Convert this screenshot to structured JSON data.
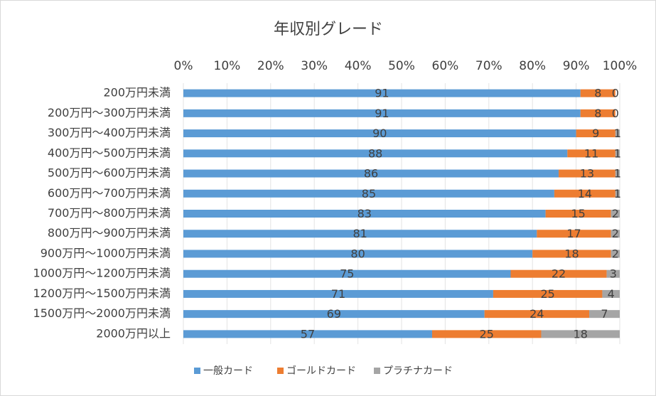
{
  "chart_data": {
    "type": "bar",
    "orientation": "horizontal",
    "stacked": true,
    "title": "年収別グレード",
    "categories": [
      "200万円未満",
      "200万円～300万円未満",
      "300万円～400万円未満",
      "400万円～500万円未満",
      "500万円～600万円未満",
      "600万円～700万円未満",
      "700万円～800万円未満",
      "800万円～900万円未満",
      "900万円～1000万円未満",
      "1000万円～1200万円未満",
      "1200万円～1500万円未満",
      "1500万円～2000万円未満",
      "2000万円以上"
    ],
    "series": [
      {
        "name": "一般カード",
        "color": "#5b9bd5",
        "values": [
          91,
          91,
          90,
          88,
          86,
          85,
          83,
          81,
          80,
          75,
          71,
          69,
          57
        ]
      },
      {
        "name": "ゴールドカード",
        "color": "#ed7d31",
        "values": [
          8,
          8,
          9,
          11,
          13,
          14,
          15,
          17,
          18,
          22,
          25,
          24,
          25
        ]
      },
      {
        "name": "プラチナカード",
        "color": "#a5a5a5",
        "values": [
          0,
          0,
          1,
          1,
          1,
          1,
          2,
          2,
          2,
          3,
          4,
          7,
          18
        ]
      }
    ],
    "xlim": [
      0,
      100
    ],
    "xticks": [
      {
        "value": 0,
        "label": "0%"
      },
      {
        "value": 10,
        "label": "10%"
      },
      {
        "value": 20,
        "label": "20%"
      },
      {
        "value": 30,
        "label": "30%"
      },
      {
        "value": 40,
        "label": "40%"
      },
      {
        "value": 50,
        "label": "50%"
      },
      {
        "value": 60,
        "label": "60%"
      },
      {
        "value": 70,
        "label": "70%"
      },
      {
        "value": 80,
        "label": "80%"
      },
      {
        "value": 90,
        "label": "90%"
      },
      {
        "value": 100,
        "label": "100%"
      }
    ],
    "grid": true,
    "legend": "bottom"
  }
}
